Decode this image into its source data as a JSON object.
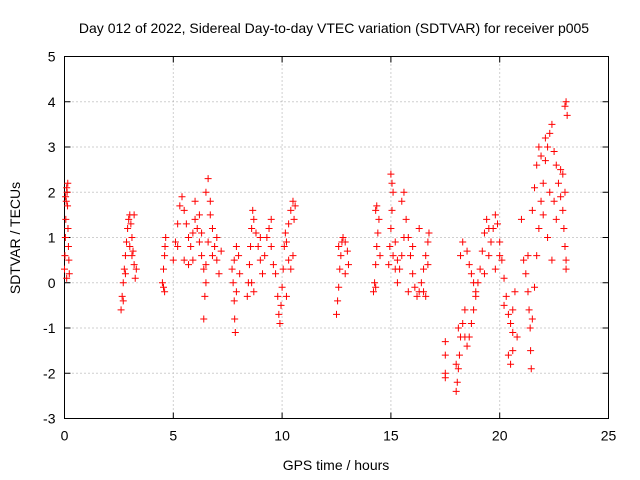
{
  "chart_data": {
    "type": "scatter",
    "title": "Day 012 of 2022, Sidereal Day-to-day VTEC variation (SDTVAR) for receiver p005",
    "xlabel": "GPS time / hours",
    "ylabel": "SDTVAR / TECUs",
    "xlim": [
      0,
      25
    ],
    "ylim": [
      -3,
      5
    ],
    "xticks": [
      0,
      5,
      10,
      15,
      20,
      25
    ],
    "yticks": [
      -3,
      -2,
      -1,
      0,
      1,
      2,
      3,
      4,
      5
    ],
    "grid": true,
    "marker": "+",
    "color": "#ff0000",
    "series": [
      {
        "name": "SDTVAR",
        "points": [
          [
            0.0,
            0.3
          ],
          [
            0.02,
            0.6
          ],
          [
            0.04,
            1.0
          ],
          [
            0.06,
            1.4
          ],
          [
            0.08,
            1.8
          ],
          [
            0.1,
            2.1
          ],
          [
            0.12,
            2.0
          ],
          [
            0.14,
            1.7
          ],
          [
            0.16,
            1.2
          ],
          [
            0.18,
            0.8
          ],
          [
            0.2,
            0.5
          ],
          [
            0.22,
            0.2
          ],
          [
            0.1,
            0.1
          ],
          [
            0.05,
            1.9
          ],
          [
            0.15,
            2.2
          ],
          [
            2.6,
            -0.6
          ],
          [
            2.65,
            -0.3
          ],
          [
            2.7,
            0.0
          ],
          [
            2.75,
            0.3
          ],
          [
            2.8,
            0.6
          ],
          [
            2.85,
            0.9
          ],
          [
            2.9,
            1.2
          ],
          [
            2.95,
            1.4
          ],
          [
            3.0,
            1.5
          ],
          [
            3.05,
            1.3
          ],
          [
            3.1,
            1.0
          ],
          [
            3.15,
            0.7
          ],
          [
            3.2,
            0.4
          ],
          [
            3.25,
            0.1
          ],
          [
            3.3,
            0.3
          ],
          [
            3.1,
            0.6
          ],
          [
            3.2,
            1.5
          ],
          [
            2.7,
            -0.4
          ],
          [
            2.8,
            0.2
          ],
          [
            3.0,
            0.8
          ],
          [
            4.5,
            0.0
          ],
          [
            4.55,
            0.3
          ],
          [
            4.6,
            0.6
          ],
          [
            4.62,
            0.8
          ],
          [
            4.65,
            1.0
          ],
          [
            4.6,
            -0.2
          ],
          [
            4.55,
            -0.1
          ],
          [
            5.0,
            0.5
          ],
          [
            5.1,
            0.9
          ],
          [
            5.2,
            1.3
          ],
          [
            5.3,
            1.7
          ],
          [
            5.4,
            1.9
          ],
          [
            5.5,
            1.6
          ],
          [
            5.6,
            1.3
          ],
          [
            5.7,
            1.0
          ],
          [
            5.8,
            0.8
          ],
          [
            5.9,
            1.1
          ],
          [
            6.0,
            1.4
          ],
          [
            6.1,
            1.2
          ],
          [
            6.2,
            0.9
          ],
          [
            6.3,
            0.6
          ],
          [
            6.4,
            0.3
          ],
          [
            6.5,
            0.0
          ],
          [
            6.45,
            -0.3
          ],
          [
            6.4,
            -0.8
          ],
          [
            6.5,
            0.4
          ],
          [
            6.6,
            0.9
          ],
          [
            6.7,
            1.5
          ],
          [
            6.5,
            2.0
          ],
          [
            6.6,
            2.3
          ],
          [
            6.7,
            1.8
          ],
          [
            6.8,
            1.2
          ],
          [
            6.9,
            0.8
          ],
          [
            7.0,
            0.5
          ],
          [
            7.1,
            0.2
          ],
          [
            7.0,
            1.0
          ],
          [
            6.8,
            0.6
          ],
          [
            5.5,
            0.5
          ],
          [
            5.7,
            0.4
          ],
          [
            6.2,
            1.5
          ],
          [
            5.2,
            0.8
          ],
          [
            5.9,
            0.5
          ],
          [
            6.0,
            1.8
          ],
          [
            6.3,
            1.1
          ],
          [
            7.2,
            0.7
          ],
          [
            7.7,
            0.3
          ],
          [
            7.75,
            0.0
          ],
          [
            7.8,
            -0.4
          ],
          [
            7.82,
            -0.8
          ],
          [
            7.85,
            -1.1
          ],
          [
            7.8,
            0.5
          ],
          [
            7.9,
            0.8
          ],
          [
            8.0,
            0.6
          ],
          [
            8.05,
            0.2
          ],
          [
            7.9,
            -0.2
          ],
          [
            8.4,
            -0.3
          ],
          [
            8.45,
            0.0
          ],
          [
            8.5,
            0.4
          ],
          [
            8.55,
            0.8
          ],
          [
            8.6,
            1.2
          ],
          [
            8.65,
            1.6
          ],
          [
            8.7,
            1.4
          ],
          [
            8.8,
            1.1
          ],
          [
            8.9,
            0.8
          ],
          [
            9.0,
            0.5
          ],
          [
            9.1,
            0.2
          ],
          [
            9.2,
            0.6
          ],
          [
            9.3,
            1.0
          ],
          [
            9.4,
            1.2
          ],
          [
            9.5,
            0.8
          ],
          [
            9.6,
            0.4
          ],
          [
            9.7,
            0.2
          ],
          [
            9.8,
            -0.3
          ],
          [
            9.85,
            -0.7
          ],
          [
            9.9,
            -0.9
          ],
          [
            9.95,
            -0.5
          ],
          [
            10.0,
            -0.1
          ],
          [
            10.05,
            0.3
          ],
          [
            10.1,
            0.8
          ],
          [
            10.15,
            1.1
          ],
          [
            10.2,
            0.9
          ],
          [
            10.3,
            0.5
          ],
          [
            10.4,
            0.3
          ],
          [
            10.5,
            0.6
          ],
          [
            10.3,
            1.3
          ],
          [
            10.4,
            1.6
          ],
          [
            10.5,
            1.8
          ],
          [
            10.6,
            1.7
          ],
          [
            10.55,
            1.4
          ],
          [
            8.6,
            0.0
          ],
          [
            8.7,
            -0.2
          ],
          [
            9.5,
            1.4
          ],
          [
            9.0,
            1.0
          ],
          [
            10.2,
            -0.3
          ],
          [
            12.5,
            -0.7
          ],
          [
            12.55,
            -0.4
          ],
          [
            12.6,
            -0.1
          ],
          [
            12.65,
            0.3
          ],
          [
            12.7,
            0.6
          ],
          [
            12.75,
            0.9
          ],
          [
            12.8,
            1.0
          ],
          [
            12.9,
            0.9
          ],
          [
            13.0,
            0.7
          ],
          [
            13.05,
            0.4
          ],
          [
            12.9,
            0.2
          ],
          [
            12.6,
            0.8
          ],
          [
            14.2,
            -0.2
          ],
          [
            14.25,
            0.0
          ],
          [
            14.3,
            0.4
          ],
          [
            14.35,
            0.8
          ],
          [
            14.4,
            1.1
          ],
          [
            14.45,
            1.4
          ],
          [
            14.3,
            1.6
          ],
          [
            14.35,
            1.7
          ],
          [
            14.5,
            0.6
          ],
          [
            14.3,
            -0.1
          ],
          [
            14.9,
            0.4
          ],
          [
            14.95,
            0.8
          ],
          [
            15.0,
            1.2
          ],
          [
            15.05,
            1.6
          ],
          [
            15.1,
            2.0
          ],
          [
            15.0,
            2.4
          ],
          [
            15.05,
            2.2
          ],
          [
            15.1,
            0.6
          ],
          [
            15.2,
            0.3
          ],
          [
            15.3,
            0.0
          ],
          [
            15.4,
            0.3
          ],
          [
            15.5,
            0.6
          ],
          [
            15.6,
            1.0
          ],
          [
            15.7,
            1.4
          ],
          [
            15.8,
            1.0
          ],
          [
            15.9,
            0.6
          ],
          [
            16.0,
            0.2
          ],
          [
            16.1,
            -0.1
          ],
          [
            16.2,
            -0.3
          ],
          [
            16.3,
            -0.2
          ],
          [
            16.4,
            0.0
          ],
          [
            16.5,
            0.3
          ],
          [
            16.6,
            0.6
          ],
          [
            16.7,
            0.9
          ],
          [
            16.75,
            1.1
          ],
          [
            16.6,
            -0.3
          ],
          [
            16.5,
            -0.2
          ],
          [
            15.6,
            2.0
          ],
          [
            15.5,
            1.8
          ],
          [
            15.2,
            0.9
          ],
          [
            16.0,
            0.8
          ],
          [
            16.3,
            1.2
          ],
          [
            15.8,
            -0.2
          ],
          [
            16.7,
            0.4
          ],
          [
            15.3,
            0.5
          ],
          [
            17.5,
            -1.3
          ],
          [
            17.5,
            -1.6
          ],
          [
            17.5,
            -2.1
          ],
          [
            17.5,
            -2.0
          ],
          [
            18.0,
            -2.4
          ],
          [
            18.05,
            -2.2
          ],
          [
            18.1,
            -1.9
          ],
          [
            18.15,
            -1.6
          ],
          [
            18.2,
            -1.2
          ],
          [
            18.3,
            -0.9
          ],
          [
            18.4,
            -1.2
          ],
          [
            18.5,
            -1.4
          ],
          [
            18.6,
            -1.2
          ],
          [
            18.7,
            -0.9
          ],
          [
            18.8,
            -0.6
          ],
          [
            18.9,
            -0.3
          ],
          [
            19.0,
            0.0
          ],
          [
            19.1,
            0.3
          ],
          [
            19.2,
            0.7
          ],
          [
            19.3,
            1.1
          ],
          [
            19.4,
            1.4
          ],
          [
            19.5,
            1.2
          ],
          [
            19.6,
            0.9
          ],
          [
            19.7,
            1.2
          ],
          [
            19.8,
            1.5
          ],
          [
            19.9,
            1.3
          ],
          [
            20.0,
            0.9
          ],
          [
            20.1,
            0.5
          ],
          [
            20.2,
            0.1
          ],
          [
            20.3,
            -0.3
          ],
          [
            20.4,
            -0.7
          ],
          [
            20.5,
            -0.9
          ],
          [
            20.6,
            -0.6
          ],
          [
            20.7,
            -0.2
          ],
          [
            20.6,
            -1.1
          ],
          [
            20.8,
            -1.2
          ],
          [
            20.5,
            -1.8
          ],
          [
            20.6,
            -1.5
          ],
          [
            18.2,
            0.6
          ],
          [
            18.3,
            0.9
          ],
          [
            18.5,
            0.7
          ],
          [
            18.6,
            0.4
          ],
          [
            18.7,
            0.2
          ],
          [
            18.8,
            0.0
          ],
          [
            18.9,
            -0.2
          ],
          [
            19.5,
            0.6
          ],
          [
            19.8,
            0.3
          ],
          [
            20.0,
            0.6
          ],
          [
            18.1,
            -1.0
          ],
          [
            18.0,
            -1.8
          ],
          [
            18.4,
            -0.6
          ],
          [
            19.3,
            0.2
          ],
          [
            20.2,
            -0.5
          ],
          [
            20.4,
            -1.6
          ],
          [
            21.0,
            1.4
          ],
          [
            21.1,
            0.5
          ],
          [
            21.2,
            0.2
          ],
          [
            21.3,
            -0.2
          ],
          [
            21.35,
            -0.6
          ],
          [
            21.4,
            -1.0
          ],
          [
            21.42,
            -1.5
          ],
          [
            21.45,
            -1.9
          ],
          [
            21.5,
            -0.8
          ],
          [
            21.6,
            -0.1
          ],
          [
            21.7,
            0.6
          ],
          [
            21.8,
            1.2
          ],
          [
            21.9,
            1.8
          ],
          [
            22.0,
            2.2
          ],
          [
            22.1,
            2.7
          ],
          [
            22.2,
            3.0
          ],
          [
            22.3,
            3.3
          ],
          [
            22.4,
            3.5
          ],
          [
            22.5,
            2.9
          ],
          [
            22.6,
            2.6
          ],
          [
            22.7,
            2.2
          ],
          [
            22.8,
            1.9
          ],
          [
            22.9,
            2.4
          ],
          [
            23.0,
            2.0
          ],
          [
            22.9,
            1.6
          ],
          [
            22.95,
            1.2
          ],
          [
            23.0,
            0.8
          ],
          [
            23.05,
            0.5
          ],
          [
            23.05,
            0.3
          ],
          [
            23.0,
            3.9
          ],
          [
            23.05,
            4.0
          ],
          [
            23.1,
            3.7
          ],
          [
            21.6,
            2.1
          ],
          [
            21.7,
            2.6
          ],
          [
            21.8,
            3.0
          ],
          [
            21.9,
            2.8
          ],
          [
            22.0,
            1.5
          ],
          [
            22.2,
            1.0
          ],
          [
            22.4,
            0.5
          ],
          [
            22.5,
            1.8
          ],
          [
            21.5,
            1.6
          ],
          [
            22.1,
            3.2
          ],
          [
            22.3,
            2.0
          ],
          [
            22.6,
            1.4
          ],
          [
            22.8,
            2.5
          ],
          [
            21.3,
            0.6
          ]
        ]
      }
    ]
  }
}
